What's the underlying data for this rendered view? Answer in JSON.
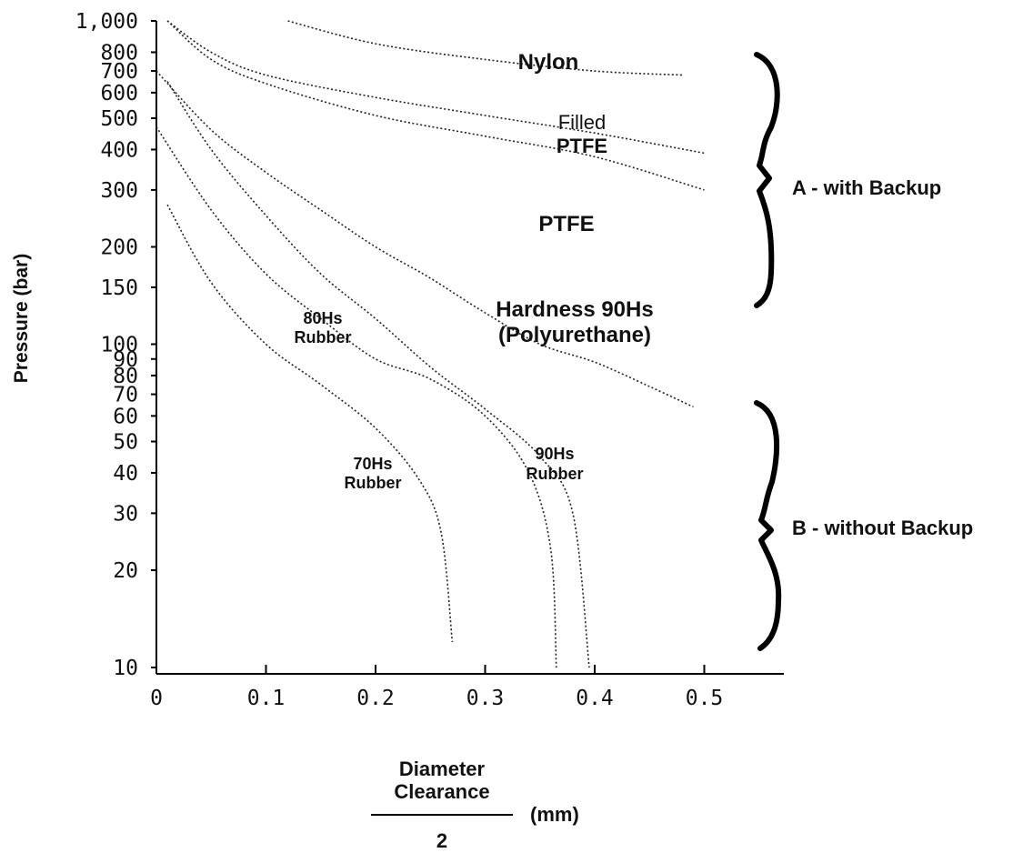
{
  "chart_data": {
    "type": "line",
    "title": "",
    "ylabel": "Pressure (bar)",
    "xlabel": {
      "numerator_line1": "Diameter",
      "numerator_line2": "Clearance",
      "denominator": "2",
      "unit": "(mm)"
    },
    "x_ticks": [
      "0",
      "0.1",
      "0.2",
      "0.3",
      "0.4",
      "0.5"
    ],
    "x_tick_values": [
      0,
      0.1,
      0.2,
      0.3,
      0.4,
      0.5
    ],
    "y_ticks": [
      "1,000",
      "800",
      "700",
      "600",
      "500",
      "400",
      "300",
      "200",
      "150",
      "100",
      "90",
      "80",
      "70",
      "60",
      "50",
      "40",
      "30",
      "20",
      "10"
    ],
    "y_tick_values": [
      1000,
      800,
      700,
      600,
      500,
      400,
      300,
      200,
      150,
      100,
      90,
      80,
      70,
      60,
      50,
      40,
      30,
      20,
      10
    ],
    "xlim": [
      0,
      0.57
    ],
    "ylim": [
      10,
      1000
    ],
    "grid": false,
    "series": [
      {
        "name": "Nylon",
        "label_lines": [
          {
            "text": "Nylon",
            "bold": true
          }
        ],
        "x": [
          0.12,
          0.2,
          0.3,
          0.4,
          0.48
        ],
        "y": [
          1000,
          850,
          760,
          700,
          680
        ]
      },
      {
        "name": "Filled PTFE",
        "label_lines": [
          {
            "text": "Filled",
            "bold": false
          },
          {
            "text": "PTFE",
            "bold": true
          }
        ],
        "x": [
          0.01,
          0.05,
          0.1,
          0.2,
          0.3,
          0.4,
          0.5
        ],
        "y": [
          1000,
          800,
          680,
          580,
          510,
          450,
          390
        ]
      },
      {
        "name": "PTFE",
        "label_lines": [
          {
            "text": "PTFE",
            "bold": true
          }
        ],
        "x": [
          0.01,
          0.05,
          0.1,
          0.2,
          0.3,
          0.4,
          0.5
        ],
        "y": [
          1000,
          760,
          640,
          510,
          440,
          380,
          300
        ]
      },
      {
        "name": "Hardness 90Hs (Polyurethane)",
        "label_lines": [
          {
            "text": "Hardness 90Hs",
            "bold": true
          },
          {
            "text": "(Polyurethane)",
            "bold": true
          }
        ],
        "x": [
          0.0,
          0.05,
          0.1,
          0.15,
          0.2,
          0.25,
          0.3,
          0.35,
          0.4,
          0.45,
          0.49
        ],
        "y": [
          700,
          460,
          340,
          260,
          200,
          160,
          125,
          100,
          88,
          74,
          64
        ]
      },
      {
        "name": "90Hs Rubber",
        "label_lines": [
          {
            "text": "90Hs",
            "bold": true
          },
          {
            "text": "Rubber",
            "bold": true
          }
        ],
        "x": [
          0.01,
          0.05,
          0.1,
          0.15,
          0.2,
          0.25,
          0.3,
          0.35,
          0.38,
          0.395
        ],
        "y": [
          650,
          400,
          250,
          165,
          120,
          85,
          63,
          45,
          30,
          10
        ]
      },
      {
        "name": "80Hs Rubber",
        "label_lines": [
          {
            "text": "80Hs",
            "bold": true
          },
          {
            "text": "Rubber",
            "bold": true
          }
        ],
        "x": [
          0.0,
          0.05,
          0.1,
          0.15,
          0.2,
          0.25,
          0.3,
          0.34,
          0.36,
          0.365
        ],
        "y": [
          470,
          260,
          165,
          120,
          90,
          78,
          60,
          40,
          23,
          10
        ]
      },
      {
        "name": "70Hs Rubber",
        "label_lines": [
          {
            "text": "70Hs",
            "bold": true
          },
          {
            "text": "Rubber",
            "bold": true
          }
        ],
        "x": [
          0.01,
          0.05,
          0.1,
          0.15,
          0.2,
          0.24,
          0.26,
          0.27
        ],
        "y": [
          270,
          155,
          100,
          75,
          55,
          38,
          26,
          12
        ]
      }
    ],
    "annotations": [
      {
        "text": "A - with Backup",
        "range": [
          200,
          800
        ]
      },
      {
        "text": "B - without Backup",
        "range": [
          15,
          100
        ]
      }
    ]
  }
}
